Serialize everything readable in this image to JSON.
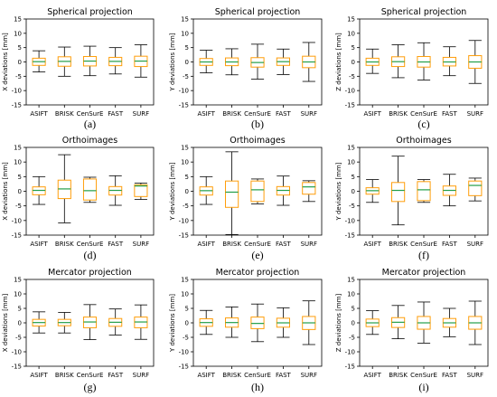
{
  "chart_data": [
    {
      "type": "box",
      "title": "Spherical projection",
      "ylabel": "X deviations [mm]",
      "caption": "(a)",
      "ylim": [
        -15,
        15
      ],
      "yticks": [
        -15,
        -10,
        -5,
        0,
        5,
        10,
        15
      ],
      "categories": [
        "ASIFT",
        "BRISK",
        "CenSurE",
        "FAST",
        "SURF"
      ],
      "boxes": [
        {
          "whislo": -3.5,
          "q1": -1.2,
          "med": 0.1,
          "q3": 1.3,
          "whishi": 3.9
        },
        {
          "whislo": -5.0,
          "q1": -1.5,
          "med": 0.2,
          "q3": 1.8,
          "whishi": 5.2
        },
        {
          "whislo": -4.8,
          "q1": -1.4,
          "med": 0.3,
          "q3": 1.9,
          "whishi": 5.5
        },
        {
          "whislo": -4.2,
          "q1": -1.3,
          "med": 0.2,
          "q3": 1.6,
          "whishi": 5.0
        },
        {
          "whislo": -5.3,
          "q1": -1.6,
          "med": 0.3,
          "q3": 2.0,
          "whishi": 6.0
        }
      ]
    },
    {
      "type": "box",
      "title": "Spherical projection",
      "ylabel": "Y deviations [mm]",
      "caption": "(b)",
      "ylim": [
        -15,
        15
      ],
      "yticks": [
        -15,
        -10,
        -5,
        0,
        5,
        10,
        15
      ],
      "categories": [
        "ASIFT",
        "BRISK",
        "CenSurE",
        "FAST",
        "SURF"
      ],
      "boxes": [
        {
          "whislo": -3.8,
          "q1": -1.2,
          "med": 0.0,
          "q3": 1.2,
          "whishi": 4.1
        },
        {
          "whislo": -4.5,
          "q1": -1.3,
          "med": 0.0,
          "q3": 1.4,
          "whishi": 4.6
        },
        {
          "whislo": -6.0,
          "q1": -1.8,
          "med": -0.2,
          "q3": 1.5,
          "whishi": 6.2
        },
        {
          "whislo": -4.4,
          "q1": -1.2,
          "med": 0.1,
          "q3": 1.4,
          "whishi": 4.5
        },
        {
          "whislo": -6.8,
          "q1": -2.0,
          "med": 0.0,
          "q3": 2.0,
          "whishi": 6.8
        }
      ]
    },
    {
      "type": "box",
      "title": "Spherical projection",
      "ylabel": "Z deviations [mm]",
      "caption": "(c)",
      "ylim": [
        -15,
        15
      ],
      "yticks": [
        -15,
        -10,
        -5,
        0,
        5,
        10,
        15
      ],
      "categories": [
        "ASIFT",
        "BRISK",
        "CenSurE",
        "FAST",
        "SURF"
      ],
      "boxes": [
        {
          "whislo": -4.0,
          "q1": -1.2,
          "med": 0.0,
          "q3": 1.3,
          "whishi": 4.5
        },
        {
          "whislo": -5.5,
          "q1": -1.6,
          "med": 0.1,
          "q3": 1.8,
          "whishi": 6.0
        },
        {
          "whislo": -6.3,
          "q1": -1.8,
          "med": 0.0,
          "q3": 1.9,
          "whishi": 6.7
        },
        {
          "whislo": -4.8,
          "q1": -1.4,
          "med": 0.0,
          "q3": 1.6,
          "whishi": 5.3
        },
        {
          "whislo": -7.5,
          "q1": -2.2,
          "med": 0.0,
          "q3": 2.2,
          "whishi": 7.5
        }
      ]
    },
    {
      "type": "box",
      "title": "Orthoimages",
      "ylabel": "X deviations [mm]",
      "caption": "(d)",
      "ylim": [
        -15,
        15
      ],
      "yticks": [
        -15,
        -10,
        -5,
        0,
        5,
        10,
        15
      ],
      "categories": [
        "ASIFT",
        "BRISK",
        "CenSurE",
        "FAST",
        "SURF"
      ],
      "boxes": [
        {
          "whislo": -4.5,
          "q1": -1.2,
          "med": 0.3,
          "q3": 1.5,
          "whishi": 5.0
        },
        {
          "whislo": -10.8,
          "q1": -2.5,
          "med": 0.8,
          "q3": 3.8,
          "whishi": 12.5
        },
        {
          "whislo": -3.8,
          "q1": -3.0,
          "med": 0.2,
          "q3": 4.2,
          "whishi": 4.8
        },
        {
          "whislo": -4.8,
          "q1": -1.3,
          "med": 0.3,
          "q3": 1.6,
          "whishi": 5.3
        },
        {
          "whislo": -2.8,
          "q1": -1.8,
          "med": 1.8,
          "q3": 2.2,
          "whishi": 2.8
        }
      ]
    },
    {
      "type": "box",
      "title": "Orthoimages",
      "ylabel": "Y deviations [mm]",
      "caption": "(e)",
      "ylim": [
        -15,
        15
      ],
      "yticks": [
        -15,
        -10,
        -5,
        0,
        5,
        10,
        15
      ],
      "categories": [
        "ASIFT",
        "BRISK",
        "CenSurE",
        "FAST",
        "SURF"
      ],
      "boxes": [
        {
          "whislo": -4.5,
          "q1": -1.3,
          "med": 0.2,
          "q3": 1.5,
          "whishi": 5.0
        },
        {
          "whislo": -14.8,
          "q1": -5.5,
          "med": -0.3,
          "q3": 3.5,
          "whishi": 13.5
        },
        {
          "whislo": -4.3,
          "q1": -3.5,
          "med": 0.5,
          "q3": 3.5,
          "whishi": 4.2
        },
        {
          "whislo": -4.8,
          "q1": -1.3,
          "med": 0.3,
          "q3": 1.6,
          "whishi": 5.2
        },
        {
          "whislo": -3.5,
          "q1": -1.0,
          "med": 1.5,
          "q3": 3.0,
          "whishi": 3.6
        }
      ]
    },
    {
      "type": "box",
      "title": "Orthoimages",
      "ylabel": "Y deviations [mm]",
      "caption": "(f)",
      "ylim": [
        -15,
        15
      ],
      "yticks": [
        -15,
        -10,
        -5,
        0,
        5,
        10,
        15
      ],
      "categories": [
        "ASIFT",
        "BRISK",
        "CenSurE",
        "FAST",
        "SURF"
      ],
      "boxes": [
        {
          "whislo": -3.8,
          "q1": -1.0,
          "med": 0.2,
          "q3": 1.2,
          "whishi": 4.0
        },
        {
          "whislo": -11.5,
          "q1": -3.5,
          "med": 0.3,
          "q3": 3.0,
          "whishi": 12.0
        },
        {
          "whislo": -3.8,
          "q1": -3.2,
          "med": 0.5,
          "q3": 3.3,
          "whishi": 4.0
        },
        {
          "whislo": -5.0,
          "q1": -1.4,
          "med": 0.3,
          "q3": 1.8,
          "whishi": 5.8
        },
        {
          "whislo": -3.3,
          "q1": -1.5,
          "med": 2.0,
          "q3": 3.5,
          "whishi": 4.5
        }
      ]
    },
    {
      "type": "box",
      "title": "Mercator projection",
      "ylabel": "X deviations [mm]",
      "caption": "(g)",
      "ylim": [
        -15,
        15
      ],
      "yticks": [
        -15,
        -10,
        -5,
        0,
        5,
        10,
        15
      ],
      "categories": [
        "ASIFT",
        "BRISK",
        "CenSurE",
        "FAST",
        "SURF"
      ],
      "boxes": [
        {
          "whislo": -3.5,
          "q1": -1.1,
          "med": 0.1,
          "q3": 1.2,
          "whishi": 3.8
        },
        {
          "whislo": -3.5,
          "q1": -1.0,
          "med": 0.1,
          "q3": 1.2,
          "whishi": 3.6
        },
        {
          "whislo": -5.8,
          "q1": -1.7,
          "med": 0.3,
          "q3": 2.0,
          "whishi": 6.3
        },
        {
          "whislo": -4.2,
          "q1": -1.2,
          "med": 0.2,
          "q3": 1.5,
          "whishi": 4.8
        },
        {
          "whislo": -5.7,
          "q1": -1.7,
          "med": 0.3,
          "q3": 2.0,
          "whishi": 6.2
        }
      ]
    },
    {
      "type": "box",
      "title": "Mercator projection",
      "ylabel": "Y deviations [mm]",
      "caption": "(h)",
      "ylim": [
        -15,
        15
      ],
      "yticks": [
        -15,
        -10,
        -5,
        0,
        5,
        10,
        15
      ],
      "categories": [
        "ASIFT",
        "BRISK",
        "CenSurE",
        "FAST",
        "SURF"
      ],
      "boxes": [
        {
          "whislo": -4.0,
          "q1": -1.2,
          "med": 0.1,
          "q3": 1.4,
          "whishi": 4.3
        },
        {
          "whislo": -5.0,
          "q1": -1.5,
          "med": 0.1,
          "q3": 1.7,
          "whishi": 5.5
        },
        {
          "whislo": -6.5,
          "q1": -2.0,
          "med": -0.2,
          "q3": 2.0,
          "whishi": 6.5
        },
        {
          "whislo": -5.0,
          "q1": -1.5,
          "med": 0.0,
          "q3": 1.6,
          "whishi": 5.2
        },
        {
          "whislo": -7.5,
          "q1": -2.3,
          "med": 0.0,
          "q3": 2.2,
          "whishi": 7.6
        }
      ]
    },
    {
      "type": "box",
      "title": "Mercator projection",
      "ylabel": "Z deviations [mm]",
      "caption": "(i)",
      "ylim": [
        -15,
        15
      ],
      "yticks": [
        -15,
        -10,
        -5,
        0,
        5,
        10,
        15
      ],
      "categories": [
        "ASIFT",
        "BRISK",
        "CenSurE",
        "FAST",
        "SURF"
      ],
      "boxes": [
        {
          "whislo": -4.0,
          "q1": -1.3,
          "med": 0.0,
          "q3": 1.3,
          "whishi": 4.2
        },
        {
          "whislo": -5.5,
          "q1": -1.6,
          "med": 0.2,
          "q3": 1.8,
          "whishi": 6.0
        },
        {
          "whislo": -7.0,
          "q1": -2.2,
          "med": 0.0,
          "q3": 2.2,
          "whishi": 7.2
        },
        {
          "whislo": -4.8,
          "q1": -1.5,
          "med": 0.0,
          "q3": 1.5,
          "whishi": 5.0
        },
        {
          "whislo": -7.5,
          "q1": -2.2,
          "med": 0.0,
          "q3": 2.2,
          "whishi": 7.5
        }
      ]
    }
  ],
  "style": {
    "box_color": "#ff9e0b",
    "median_color": "#239e49",
    "line_color": "#000000",
    "axis_color": "#000000"
  }
}
